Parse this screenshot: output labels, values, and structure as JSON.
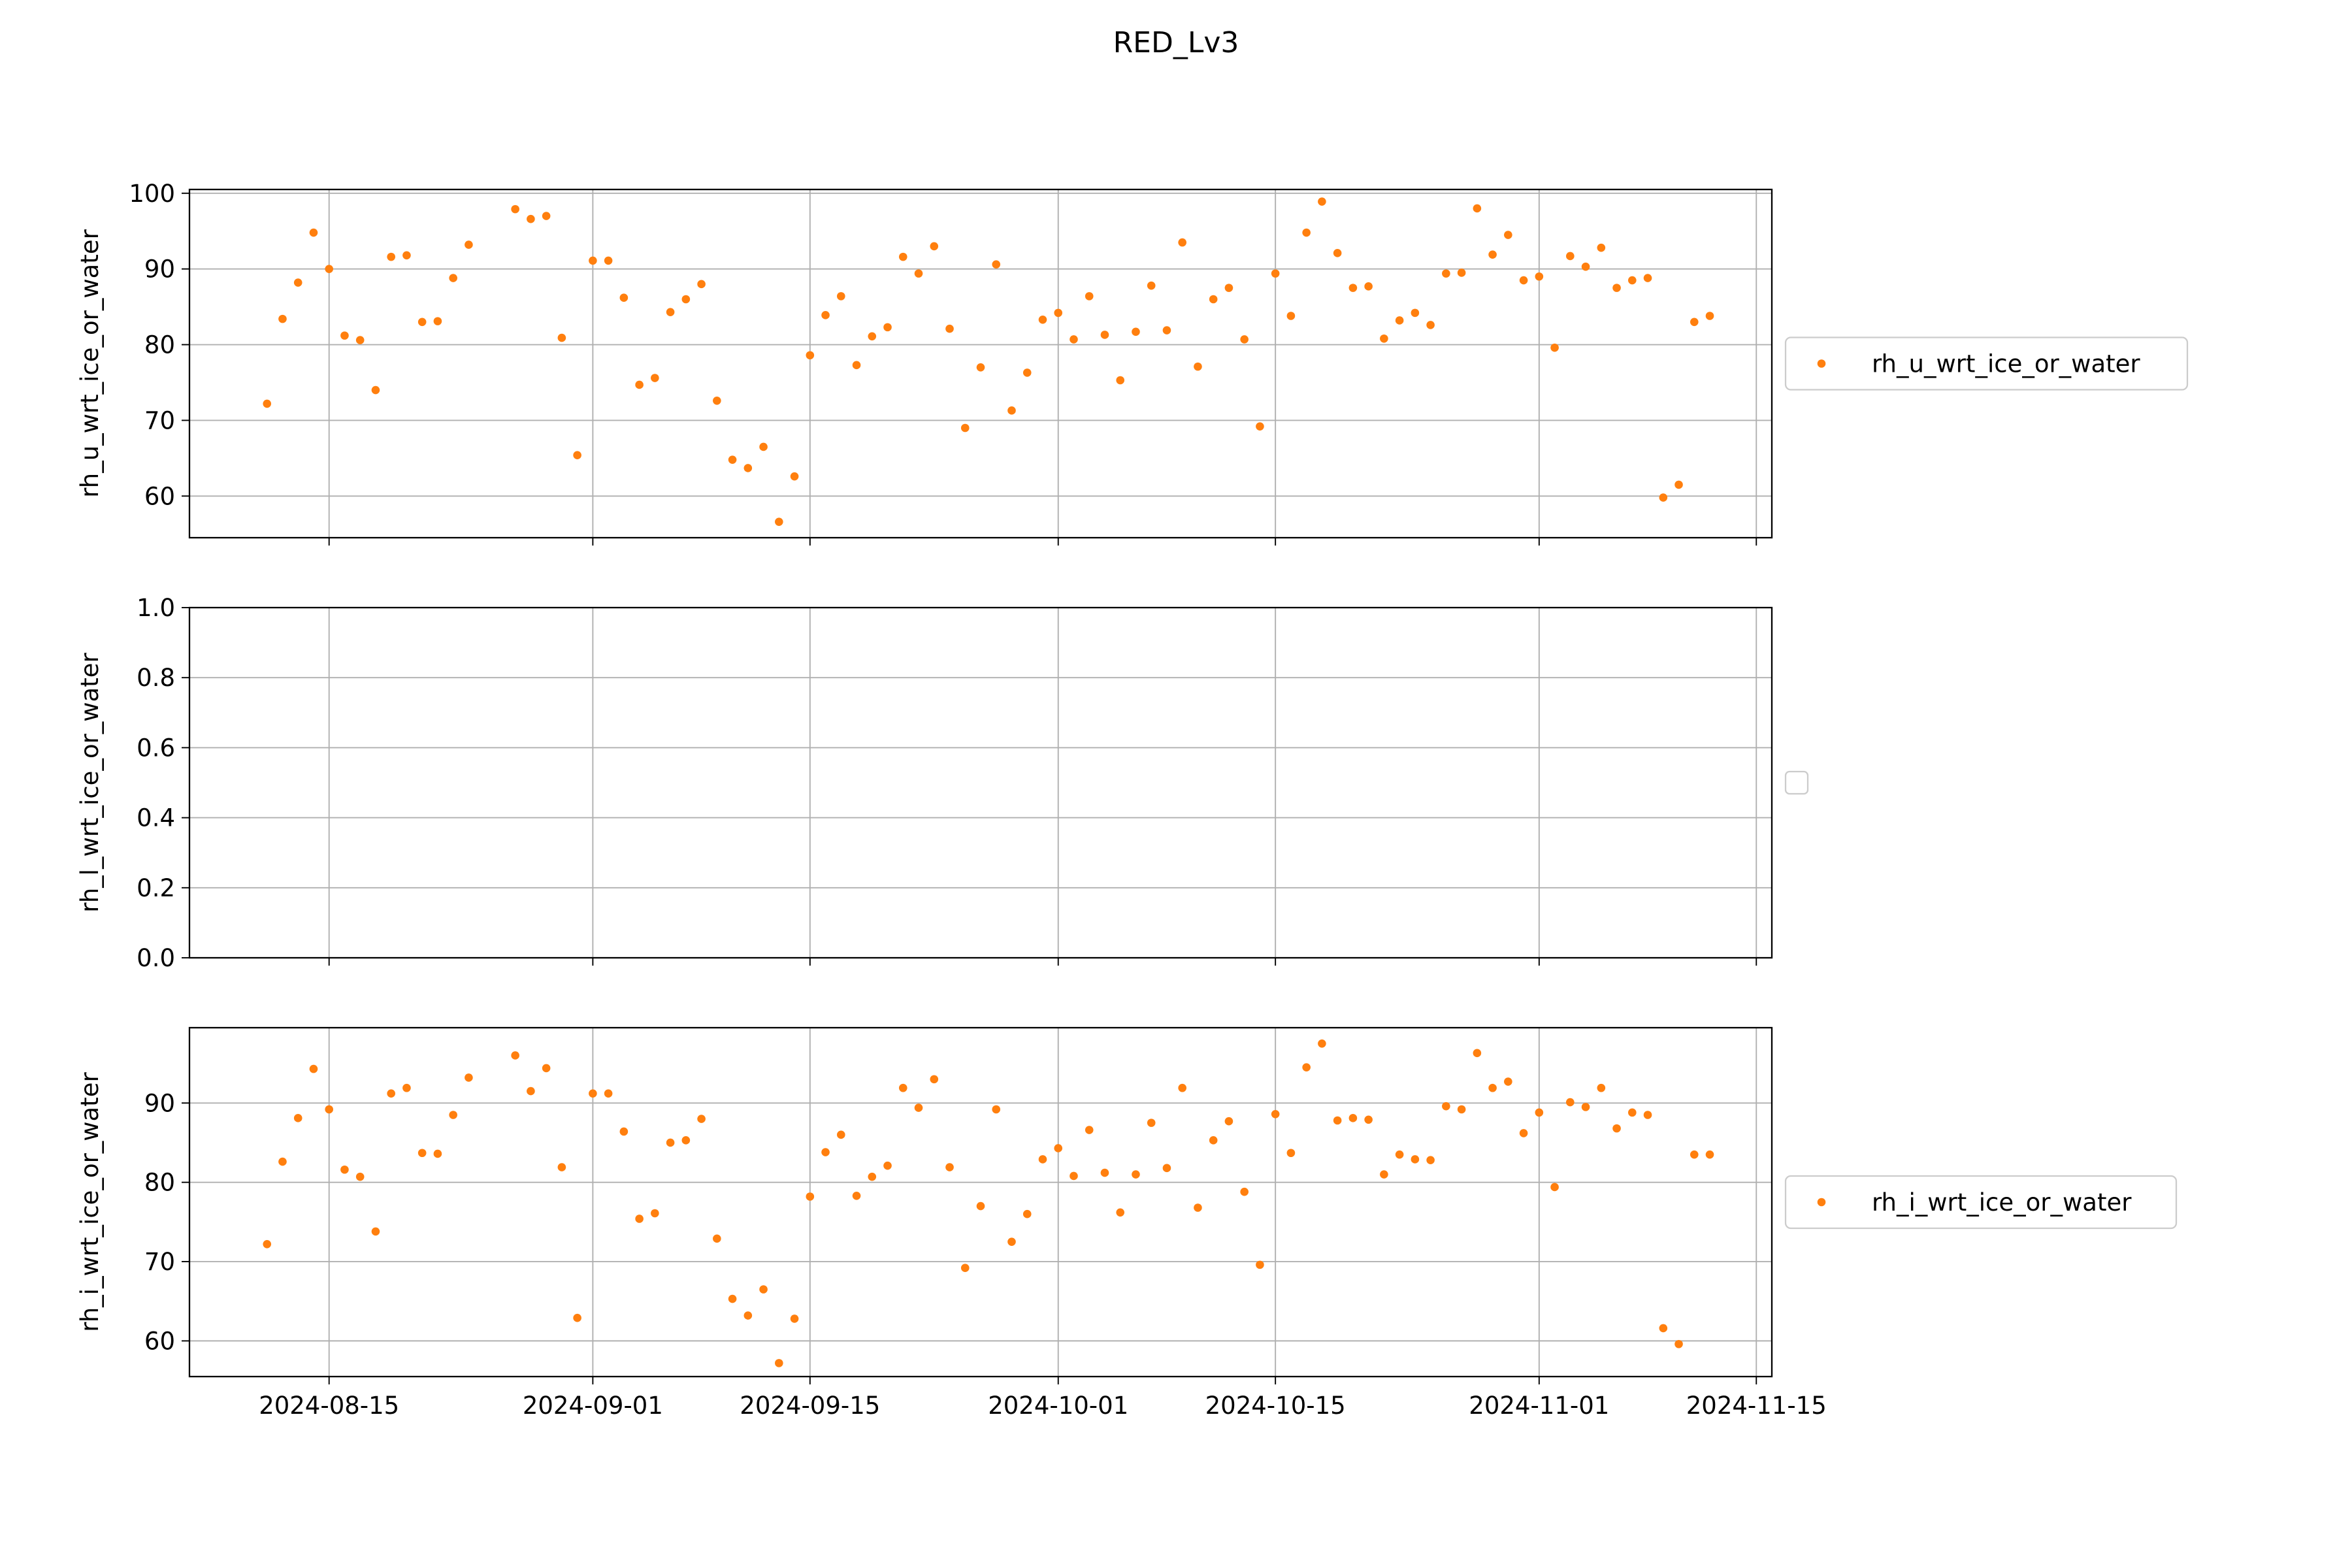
{
  "chart_data": {
    "title": "RED_Lv3",
    "type": "scatter",
    "x_axis": {
      "type": "date",
      "range": [
        "2024-08-06",
        "2024-11-16"
      ],
      "ticks": [
        "2024-08-15",
        "2024-09-01",
        "2024-09-15",
        "2024-10-01",
        "2024-10-15",
        "2024-11-01",
        "2024-11-15"
      ],
      "tick_labels_shown_on": "bottom"
    },
    "marker_color": "#ff7f0e",
    "grid": true,
    "legend_placement": "right, outside the plot",
    "panels": [
      {
        "ylabel": "rh_u_wrt_ice_or_water",
        "ylim": [
          54.5,
          100.5
        ],
        "yticks": [
          60,
          70,
          80,
          90,
          100
        ],
        "legend": "rh_u_wrt_ice_or_water",
        "series": {
          "name": "rh_u_wrt_ice_or_water",
          "x": [
            "2024-08-11",
            "2024-08-12",
            "2024-08-13",
            "2024-08-14",
            "2024-08-15",
            "2024-08-16",
            "2024-08-17",
            "2024-08-18",
            "2024-08-19",
            "2024-08-20",
            "2024-08-21",
            "2024-08-22",
            "2024-08-23",
            "2024-08-24",
            "2024-08-27",
            "2024-08-28",
            "2024-08-29",
            "2024-08-30",
            "2024-08-31",
            "2024-09-01",
            "2024-09-02",
            "2024-09-03",
            "2024-09-04",
            "2024-09-05",
            "2024-09-06",
            "2024-09-07",
            "2024-09-08",
            "2024-09-09",
            "2024-09-10",
            "2024-09-11",
            "2024-09-12",
            "2024-09-13",
            "2024-09-14",
            "2024-09-15",
            "2024-09-16",
            "2024-09-17",
            "2024-09-18",
            "2024-09-19",
            "2024-09-20",
            "2024-09-21",
            "2024-09-22",
            "2024-09-23",
            "2024-09-24",
            "2024-09-25",
            "2024-09-26",
            "2024-09-27",
            "2024-09-28",
            "2024-09-29",
            "2024-09-30",
            "2024-10-01",
            "2024-10-02",
            "2024-10-03",
            "2024-10-04",
            "2024-10-05",
            "2024-10-06",
            "2024-10-07",
            "2024-10-08",
            "2024-10-09",
            "2024-10-10",
            "2024-10-11",
            "2024-10-12",
            "2024-10-13",
            "2024-10-14",
            "2024-10-15",
            "2024-10-16",
            "2024-10-17",
            "2024-10-18",
            "2024-10-19",
            "2024-10-20",
            "2024-10-21",
            "2024-10-22",
            "2024-10-23",
            "2024-10-24",
            "2024-10-25",
            "2024-10-26",
            "2024-10-27",
            "2024-10-28",
            "2024-10-29",
            "2024-10-30",
            "2024-10-31",
            "2024-11-01",
            "2024-11-02",
            "2024-11-03",
            "2024-11-04",
            "2024-11-05",
            "2024-11-06",
            "2024-11-07",
            "2024-11-08",
            "2024-11-09",
            "2024-11-10",
            "2024-11-11",
            "2024-11-12"
          ],
          "y": [
            72.2,
            83.4,
            88.2,
            94.8,
            90.0,
            81.2,
            80.6,
            74.0,
            91.6,
            91.8,
            83.0,
            83.1,
            88.8,
            93.2,
            97.9,
            96.6,
            97.0,
            80.9,
            65.4,
            91.1,
            91.1,
            86.2,
            74.7,
            75.6,
            84.3,
            86.0,
            88.0,
            72.6,
            64.8,
            63.7,
            66.5,
            56.6,
            62.6,
            78.6,
            83.9,
            86.4,
            77.3,
            81.1,
            82.3,
            91.6,
            89.4,
            93.0,
            82.1,
            69.0,
            77.0,
            90.6,
            71.3,
            76.3,
            83.3,
            84.2,
            80.7,
            86.4,
            81.3,
            75.3,
            81.7,
            87.8,
            81.9,
            93.5,
            77.1,
            86.0,
            87.5,
            80.7,
            69.2,
            89.4,
            83.8,
            94.8,
            98.9,
            92.1,
            87.5,
            87.7,
            80.8,
            83.2,
            84.2,
            82.6,
            89.4,
            89.5,
            98.0,
            91.9,
            94.5,
            88.5,
            89.0,
            79.6,
            91.7,
            90.3,
            92.8,
            87.5,
            88.5,
            88.8,
            59.8,
            61.5,
            83.0,
            83.8
          ]
        }
      },
      {
        "ylabel": "rh_l_wrt_ice_or_water",
        "ylim": [
          0.0,
          1.0
        ],
        "yticks": [
          "0.0",
          "0.2",
          "0.4",
          "0.6",
          "0.8",
          "1.0"
        ],
        "legend": "",
        "series": null
      },
      {
        "ylabel": "rh_i_wrt_ice_or_water",
        "ylim": [
          55.5,
          99.5
        ],
        "yticks": [
          60,
          70,
          80,
          90
        ],
        "legend": "rh_i_wrt_ice_or_water",
        "series": {
          "name": "rh_i_wrt_ice_or_water",
          "x": [
            "2024-08-11",
            "2024-08-12",
            "2024-08-13",
            "2024-08-14",
            "2024-08-15",
            "2024-08-16",
            "2024-08-17",
            "2024-08-18",
            "2024-08-19",
            "2024-08-20",
            "2024-08-21",
            "2024-08-22",
            "2024-08-23",
            "2024-08-24",
            "2024-08-27",
            "2024-08-28",
            "2024-08-29",
            "2024-08-30",
            "2024-08-31",
            "2024-09-01",
            "2024-09-02",
            "2024-09-03",
            "2024-09-04",
            "2024-09-05",
            "2024-09-06",
            "2024-09-07",
            "2024-09-08",
            "2024-09-09",
            "2024-09-10",
            "2024-09-11",
            "2024-09-12",
            "2024-09-13",
            "2024-09-14",
            "2024-09-15",
            "2024-09-16",
            "2024-09-17",
            "2024-09-18",
            "2024-09-19",
            "2024-09-20",
            "2024-09-21",
            "2024-09-22",
            "2024-09-23",
            "2024-09-24",
            "2024-09-25",
            "2024-09-26",
            "2024-09-27",
            "2024-09-28",
            "2024-09-29",
            "2024-09-30",
            "2024-10-01",
            "2024-10-02",
            "2024-10-03",
            "2024-10-04",
            "2024-10-05",
            "2024-10-06",
            "2024-10-07",
            "2024-10-08",
            "2024-10-09",
            "2024-10-10",
            "2024-10-11",
            "2024-10-12",
            "2024-10-13",
            "2024-10-14",
            "2024-10-15",
            "2024-10-16",
            "2024-10-17",
            "2024-10-18",
            "2024-10-19",
            "2024-10-20",
            "2024-10-21",
            "2024-10-22",
            "2024-10-23",
            "2024-10-24",
            "2024-10-25",
            "2024-10-26",
            "2024-10-27",
            "2024-10-28",
            "2024-10-29",
            "2024-10-30",
            "2024-10-31",
            "2024-11-01",
            "2024-11-02",
            "2024-11-03",
            "2024-11-04",
            "2024-11-05",
            "2024-11-06",
            "2024-11-07",
            "2024-11-08",
            "2024-11-09",
            "2024-11-10",
            "2024-11-11",
            "2024-11-12"
          ],
          "y": [
            72.2,
            82.6,
            88.1,
            94.3,
            89.2,
            81.6,
            80.7,
            73.8,
            91.2,
            91.9,
            83.7,
            83.6,
            88.5,
            93.2,
            96.0,
            91.5,
            94.4,
            81.9,
            62.9,
            91.2,
            91.2,
            86.4,
            75.4,
            76.1,
            85.0,
            85.3,
            88.0,
            72.9,
            65.3,
            63.2,
            66.5,
            57.2,
            62.8,
            78.2,
            83.8,
            86.0,
            78.3,
            80.7,
            82.1,
            91.9,
            89.4,
            93.0,
            81.9,
            69.2,
            77.0,
            89.2,
            72.5,
            76.0,
            82.9,
            84.3,
            80.8,
            86.6,
            81.2,
            76.2,
            81.0,
            87.5,
            81.8,
            91.9,
            76.8,
            85.3,
            87.7,
            78.8,
            69.6,
            88.6,
            83.7,
            94.5,
            97.5,
            87.8,
            88.1,
            87.9,
            81.0,
            83.5,
            82.9,
            82.8,
            89.6,
            89.2,
            96.3,
            91.9,
            92.7,
            86.2,
            88.8,
            79.4,
            90.1,
            89.5,
            91.9,
            86.8,
            88.8,
            88.5,
            61.6,
            59.6,
            83.5,
            83.5
          ]
        }
      }
    ]
  }
}
